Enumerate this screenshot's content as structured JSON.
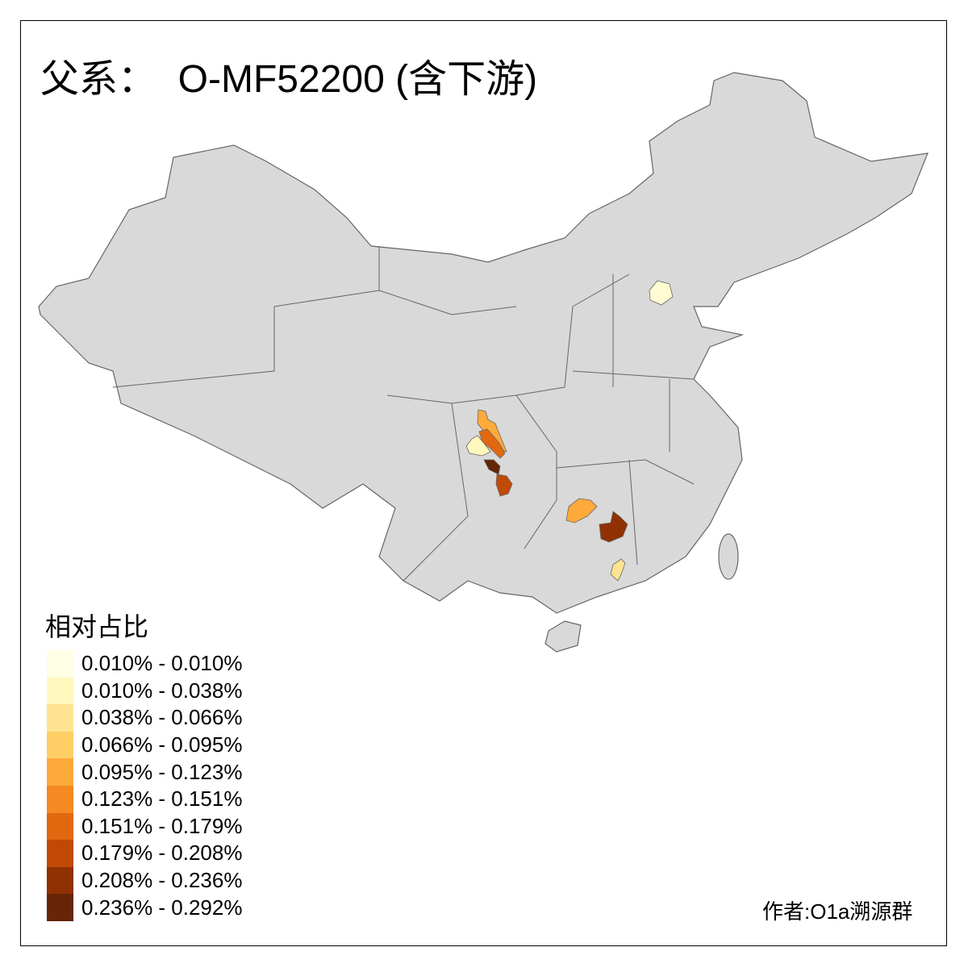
{
  "title": "父系：  O-MF52200 (含下游)",
  "legend": {
    "title": "相对占比",
    "items": [
      {
        "label": "0.010% - 0.010%",
        "color": "#FFFFE5"
      },
      {
        "label": "0.010% - 0.038%",
        "color": "#FFF7BC"
      },
      {
        "label": "0.038% - 0.066%",
        "color": "#FEE391"
      },
      {
        "label": "0.066% - 0.095%",
        "color": "#FECE65"
      },
      {
        "label": "0.095% - 0.123%",
        "color": "#FEAA3A"
      },
      {
        "label": "0.123% - 0.151%",
        "color": "#F58A22"
      },
      {
        "label": "0.151% - 0.179%",
        "color": "#E2680F"
      },
      {
        "label": "0.179% - 0.208%",
        "color": "#C04A05"
      },
      {
        "label": "0.208% - 0.236%",
        "color": "#8F3103"
      },
      {
        "label": "0.236% - 0.292%",
        "color": "#662506"
      }
    ]
  },
  "map": {
    "base_color": "#D9D9D9",
    "border_color": "#666666"
  },
  "credit": "作者:O1a溯源群"
}
